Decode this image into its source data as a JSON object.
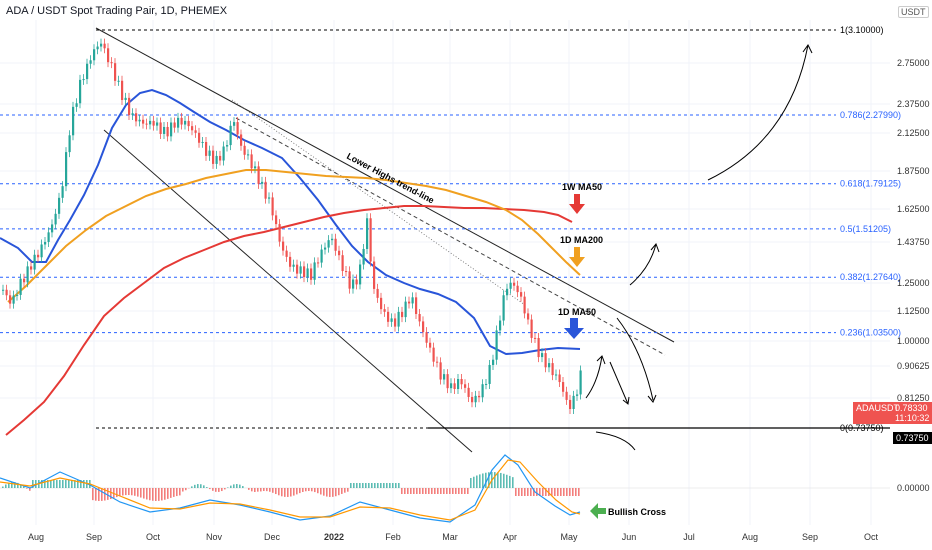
{
  "header": {
    "title": "ADA / USDT Spot Trading Pair, 1D, PHEMEX",
    "currency": "USDT"
  },
  "chart_data": {
    "type": "candlestick",
    "x_tick_labels": [
      "Aug",
      "Sep",
      "Oct",
      "Nov",
      "Dec",
      "2022",
      "Feb",
      "Mar",
      "Apr",
      "May",
      "Jun",
      "Jul",
      "Aug",
      "Sep",
      "Oct"
    ],
    "y_tick_labels": [
      "2.75000",
      "2.37500",
      "2.12500",
      "1.87500",
      "1.62500",
      "1.43750",
      "1.25000",
      "1.12500",
      "1.00000",
      "0.90625",
      "0.81250",
      "0.00000"
    ],
    "fib_levels": [
      {
        "label": "1(3.10000)",
        "value": 3.1
      },
      {
        "label": "0.786(2.27990)",
        "value": 2.2799
      },
      {
        "label": "0.618(1.79125)",
        "value": 1.79125
      },
      {
        "label": "0.5(1.51205)",
        "value": 1.51205
      },
      {
        "label": "0.382(1.27640)",
        "value": 1.2764
      },
      {
        "label": "0.236(1.03500)",
        "value": 1.035
      },
      {
        "label": "0(0.73750)",
        "value": 0.7375
      }
    ],
    "annotations": [
      "Lower Highs trend-line",
      "1W MA50",
      "1D MA200",
      "1D MA50",
      "Bullish Cross"
    ],
    "price_labels": {
      "symbol": "ADAUSDT",
      "last": "0.78330",
      "countdown": "11:10:32",
      "support": "0.73750"
    },
    "series": [
      {
        "name": "1D MA50",
        "color": "#2955d9"
      },
      {
        "name": "1D MA200",
        "color": "#e53935"
      },
      {
        "name": "1W MA50",
        "color": "#f0a020"
      }
    ]
  },
  "colors": {
    "up": "#26a69a",
    "down": "#ef5350",
    "fib": "#2962ff",
    "ma50": "#2955d9",
    "ma200": "#e53935",
    "w50": "#f0a020"
  }
}
